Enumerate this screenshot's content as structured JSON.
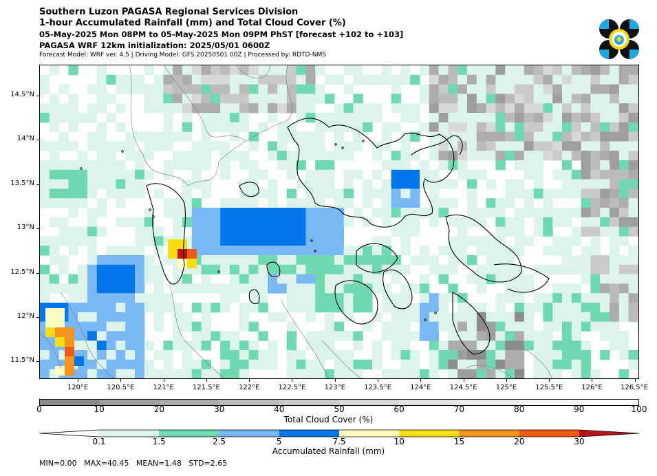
{
  "header": {
    "title": "Southern Luzon PAGASA Regional Services Division",
    "subtitle": "1-hour Accumulated Rainfall (mm) and Total Cloud Cover (%)",
    "valid_time": "05-May-2025 Mon 08PM to 05-May-2025 Mon 09PM PhST [forecast +102 to +103]",
    "init": "PAGASA WRF 12km initialization: 2025/05/01 0600Z",
    "model_info": "Forecast Model: WRF ver. 4.5 | Driving Model: GFS 20250501 00Z | Processed by: RDTD-NMS"
  },
  "map": {
    "lat_labels": [
      "14.5°N",
      "14°N",
      "13.5°N",
      "13°N",
      "12.5°N",
      "12°N",
      "11.5°N"
    ],
    "lon_labels": [
      "120°E",
      "120.5°E",
      "121°E",
      "121.5°E",
      "122°E",
      "122.5°E",
      "123°E",
      "123.5°E",
      "124°E",
      "124.5°E",
      "125°E",
      "125.5°E",
      "126°E",
      "126.5°E"
    ],
    "lon_range": [
      119.55,
      126.55
    ],
    "lat_range": [
      11.3,
      14.85
    ]
  },
  "cloud_colorbar": {
    "title": "Total Cloud Cover (%)",
    "tick_labels": [
      "0",
      "10",
      "20",
      "30",
      "40",
      "50",
      "60",
      "70",
      "80",
      "90",
      "100"
    ],
    "colors": [
      "#8c8c8c",
      "#9e9e9e",
      "#acacac",
      "#bcbcbc",
      "#cacaca",
      "#d8d8d8",
      "#e4e4e4",
      "#eeeeee",
      "#f6f6f6",
      "#ffffff"
    ]
  },
  "rain_colorbar": {
    "title": "Accumulated Rainfall (mm)",
    "tick_labels": [
      "0.1",
      "1.5",
      "2.5",
      "5",
      "7.5",
      "10",
      "15",
      "20",
      "30"
    ],
    "colors": [
      "#ffffff",
      "#dcf4ec",
      "#6fd9b0",
      "#78b8f5",
      "#0377e9",
      "#ffffc0",
      "#f8de12",
      "#f4931e",
      "#ee5a10",
      "#b81414"
    ]
  },
  "stats": {
    "text": "MIN=0.00   MAX=40.45   MEAN=1.48   STD=2.65"
  },
  "logo": {
    "name": "PAGASA seal",
    "colors": [
      "#111111",
      "#1aa9e8",
      "#f2d60f"
    ]
  }
}
